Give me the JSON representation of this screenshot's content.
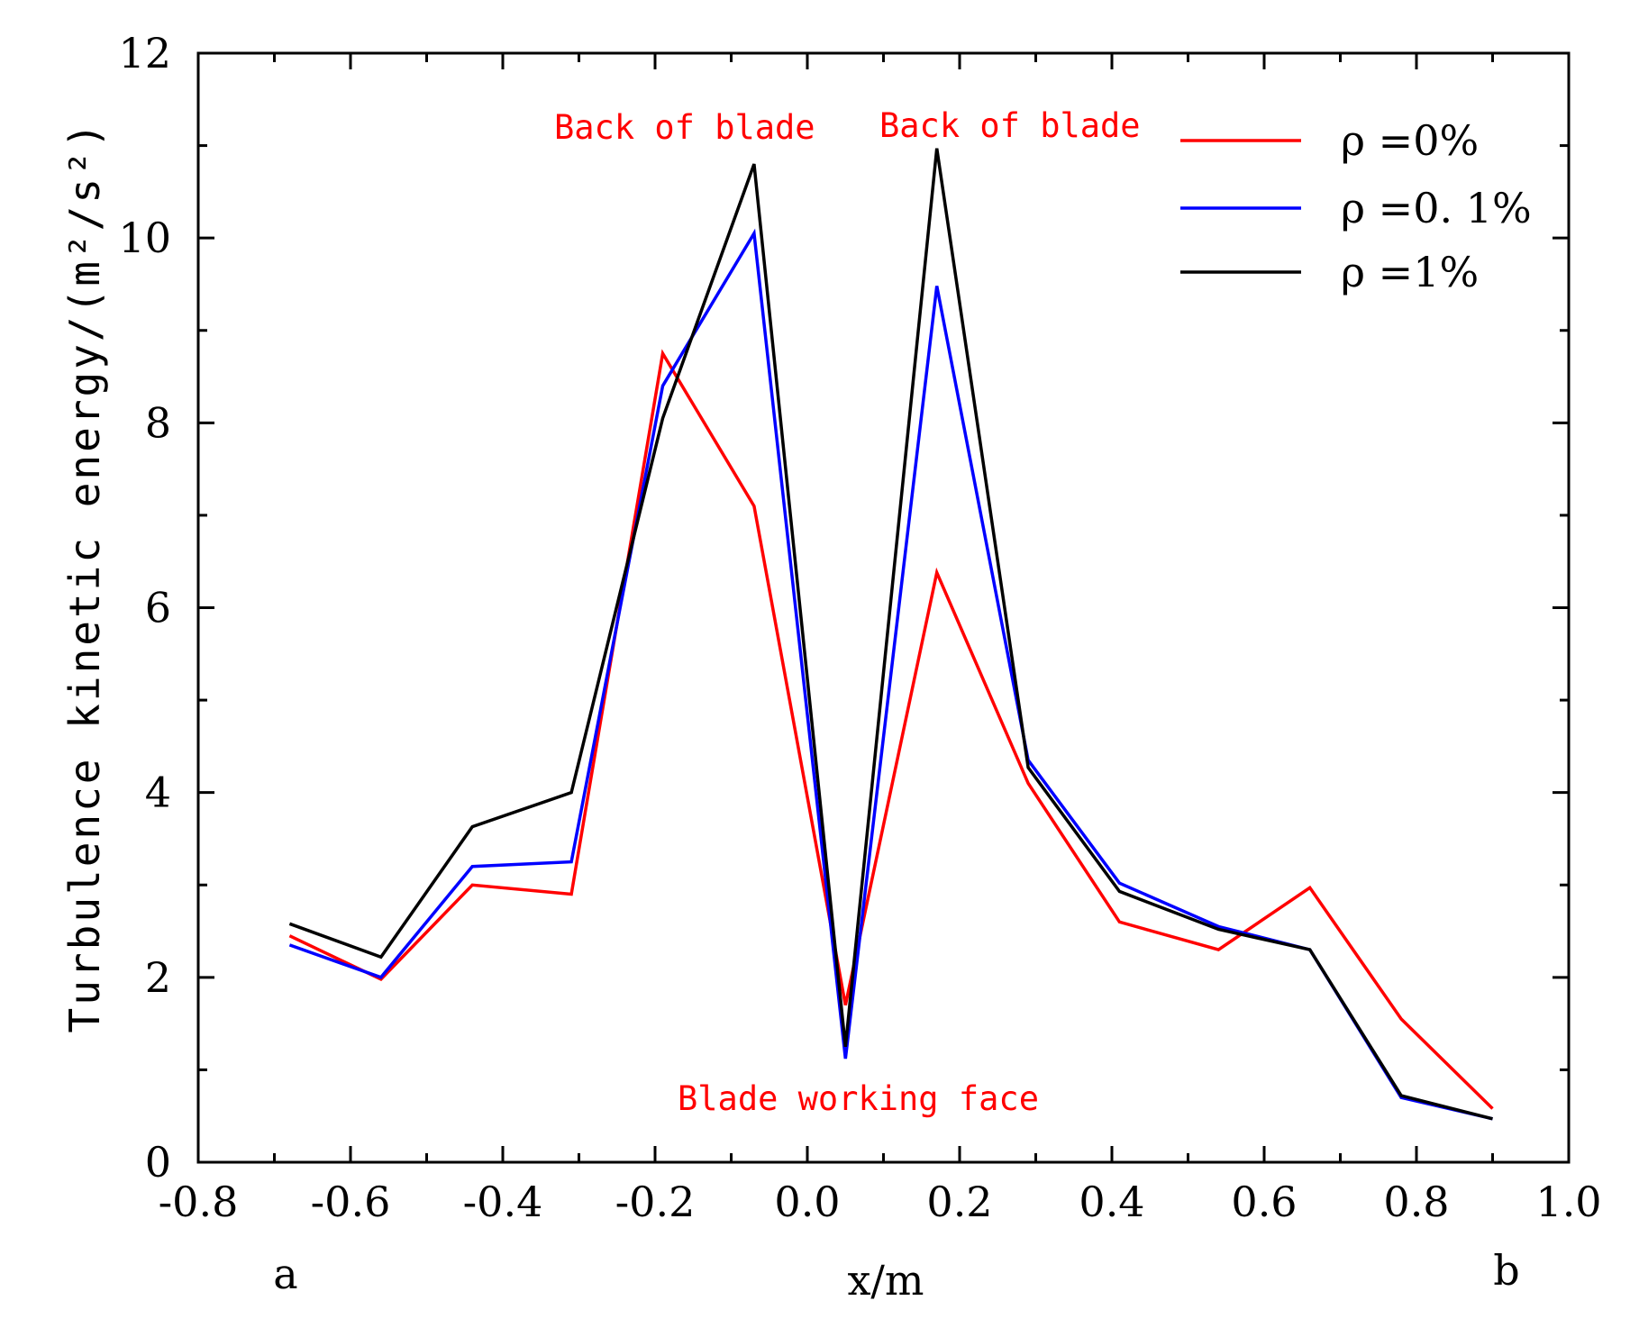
{
  "chart_data": {
    "type": "line",
    "xlabel": "x/m",
    "ylabel": "Turbulence kinetic energy/(m²/s²)",
    "xlim": [
      -0.8,
      1.0
    ],
    "ylim": [
      0,
      12
    ],
    "xticks": [
      "-0.8",
      "-0.6",
      "-0.4",
      "-0.2",
      "0.0",
      "0.2",
      "0.4",
      "0.6",
      "0.8",
      "1.0"
    ],
    "yticks": [
      "0",
      "2",
      "4",
      "6",
      "8",
      "10",
      "12"
    ],
    "x": [
      -0.68,
      -0.56,
      -0.44,
      -0.31,
      -0.19,
      -0.07,
      0.05,
      0.17,
      0.29,
      0.41,
      0.54,
      0.66,
      0.78,
      0.9
    ],
    "series": [
      {
        "name": "ρ =0%",
        "color": "#ff0000",
        "values": [
          2.45,
          1.98,
          3.0,
          2.9,
          8.75,
          7.1,
          1.7,
          6.38,
          4.1,
          2.6,
          2.3,
          2.97,
          1.55,
          0.58
        ]
      },
      {
        "name": "ρ =0. 1%",
        "color": "#0000ff",
        "values": [
          2.35,
          2.0,
          3.2,
          3.25,
          8.4,
          10.05,
          1.12,
          9.48,
          4.35,
          3.02,
          2.55,
          2.3,
          0.7,
          0.47
        ]
      },
      {
        "name": "ρ =1%",
        "color": "#000000",
        "values": [
          2.58,
          2.22,
          3.63,
          4.0,
          8.05,
          10.8,
          1.25,
          10.97,
          4.27,
          2.93,
          2.52,
          2.3,
          0.72,
          0.47
        ]
      }
    ],
    "annotations": [
      "Back of blade",
      "Back of blade",
      "Blade working face"
    ],
    "annotation_color": "#ff0000",
    "corner_labels": {
      "left": "a",
      "right": "b"
    },
    "legend_position": "top-right"
  }
}
